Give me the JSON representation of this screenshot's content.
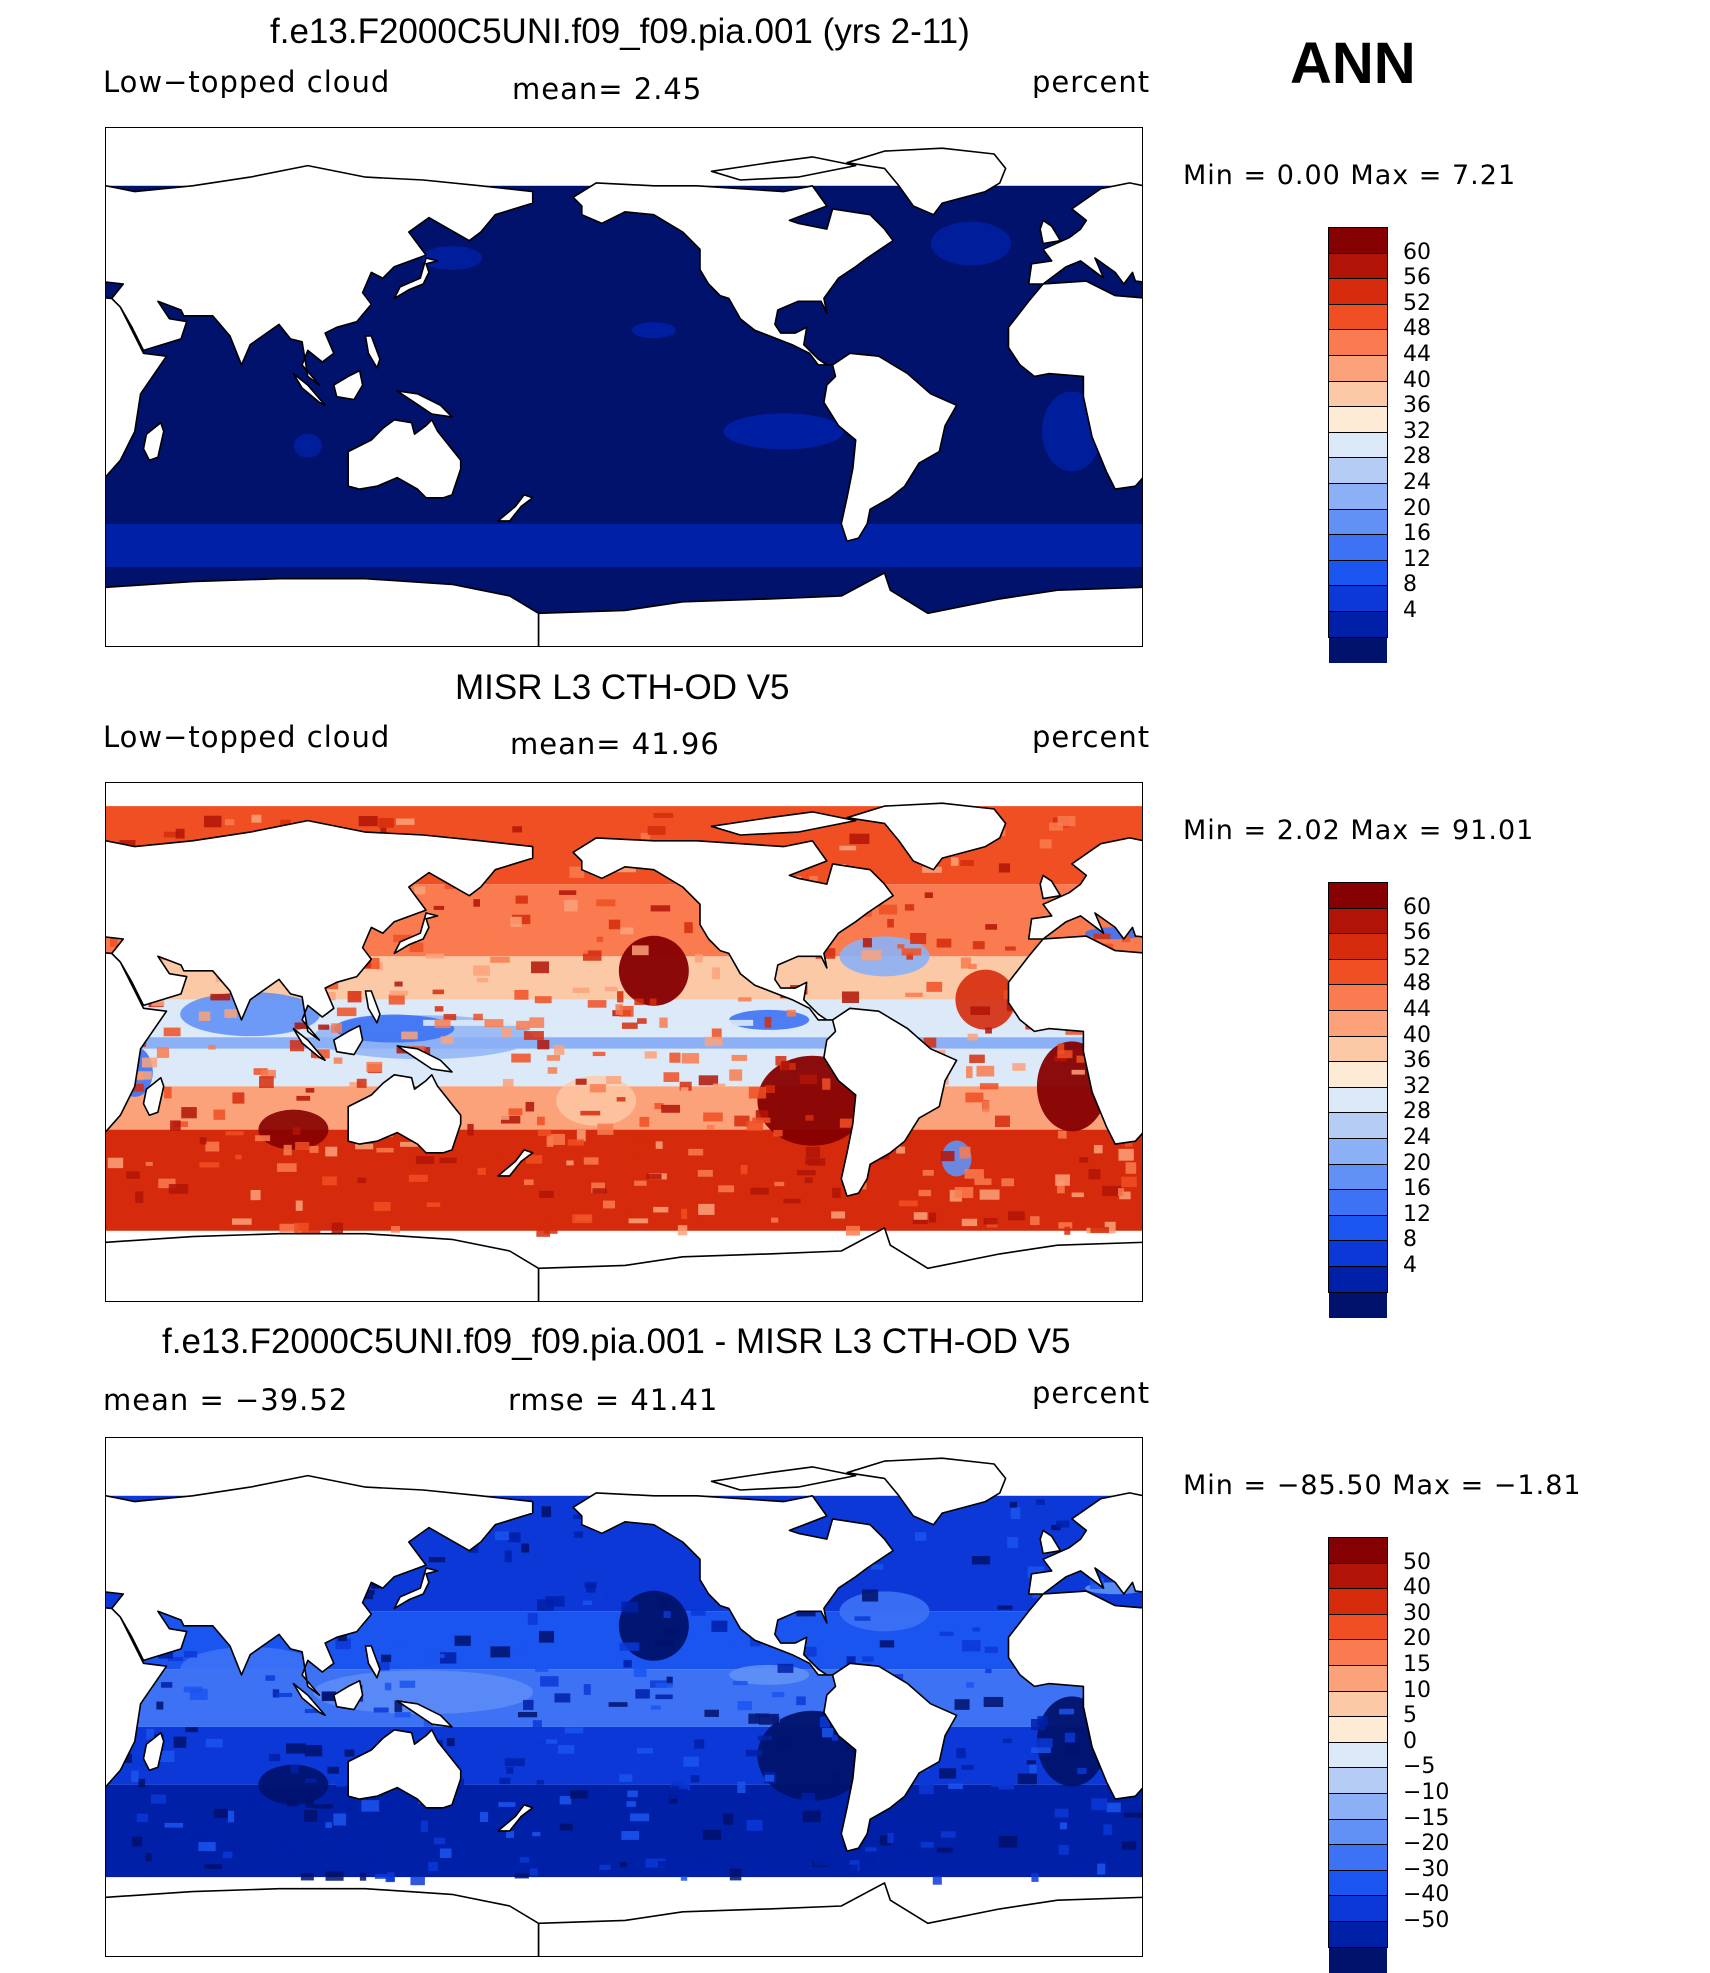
{
  "season": "ANN",
  "colors": {
    "seq": [
      "#00126b",
      "#0020a8",
      "#0b38d6",
      "#1b55f0",
      "#3d72f5",
      "#6191f5",
      "#8cb0f5",
      "#b5ccf5",
      "#dce9f8",
      "#fdebd6",
      "#fcc9a7",
      "#fca27a",
      "#f97b4f",
      "#f04f23",
      "#d52b0c",
      "#b11407",
      "#850000"
    ],
    "land": "#ffffff"
  },
  "panels": [
    {
      "title": "f.e13.F2000C5UNI.f09_f09.pia.001 (yrs 2-11)",
      "left_label": "Low−topped cloud",
      "center_label": "mean=    2.45",
      "right_label": "percent",
      "min_max": "Min  =     0.00  Max  =     7.21",
      "colorbar_labels": [
        "60",
        "56",
        "52",
        "48",
        "44",
        "40",
        "36",
        "32",
        "28",
        "24",
        "20",
        "16",
        "12",
        "8",
        "4"
      ],
      "field_pattern": "model"
    },
    {
      "title": "MISR L3 CTH-OD V5",
      "left_label": "Low−topped cloud",
      "center_label": "mean=   41.96",
      "right_label": "percent",
      "min_max": "Min  =     2.02  Max  =    91.01",
      "colorbar_labels": [
        "60",
        "56",
        "52",
        "48",
        "44",
        "40",
        "36",
        "32",
        "28",
        "24",
        "20",
        "16",
        "12",
        "8",
        "4"
      ],
      "field_pattern": "obs"
    },
    {
      "title": "f.e13.F2000C5UNI.f09_f09.pia.001 - MISR L3 CTH-OD V5",
      "left_label": "mean  =  −39.52",
      "center_label": "rmse  =    41.41",
      "right_label": "percent",
      "min_max": "Min  =  −85.50  Max  =   −1.81",
      "colorbar_labels": [
        "50",
        "40",
        "30",
        "20",
        "15",
        "10",
        "5",
        "0",
        "−5",
        "−10",
        "−15",
        "−20",
        "−30",
        "−40",
        "−50"
      ],
      "field_pattern": "diff"
    }
  ]
}
